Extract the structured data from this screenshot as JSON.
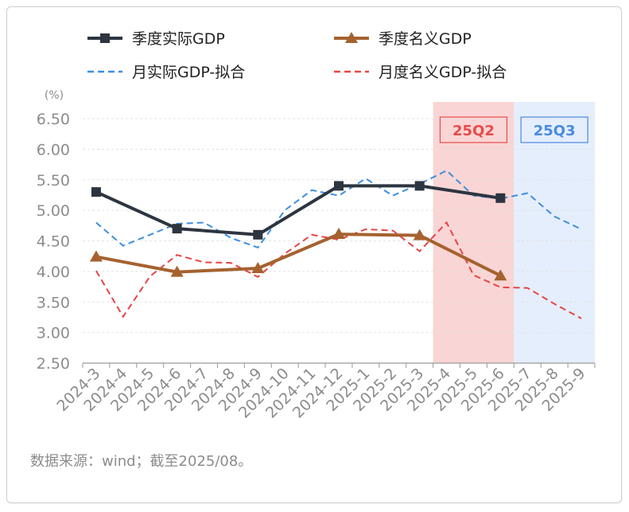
{
  "chart_data": {
    "type": "line",
    "unit_label": "(%)",
    "ylim": [
      2.5,
      6.5
    ],
    "y_ticks": [
      "2.50",
      "3.00",
      "3.50",
      "4.00",
      "4.50",
      "5.00",
      "5.50",
      "6.00",
      "6.50"
    ],
    "categories": [
      "2024-3",
      "2024-4",
      "2024-5",
      "2024-6",
      "2024-7",
      "2024-8",
      "2024-9",
      "2024-10",
      "2024-11",
      "2024-12",
      "2025-1",
      "2025-2",
      "2025-3",
      "2025-4",
      "2025-5",
      "2025-6",
      "2025-7",
      "2025-8",
      "2025-9"
    ],
    "grid": true,
    "legend_position": "top",
    "shaded_regions": [
      {
        "label": "25Q2",
        "from": "2025-4",
        "to": "2025-6",
        "fill": "#f9d5d5",
        "color": "#e84b4b"
      },
      {
        "label": "25Q3",
        "from": "2025-7",
        "to": "2025-9",
        "fill": "#e5eefc",
        "color": "#4a8be0"
      }
    ],
    "series": [
      {
        "name": "季度实际GDP",
        "style": "solid-square",
        "color": "#2d3540",
        "points": [
          [
            "2024-3",
            5.3
          ],
          [
            "2024-6",
            4.7
          ],
          [
            "2024-9",
            4.6
          ],
          [
            "2024-12",
            5.4
          ],
          [
            "2025-3",
            5.4
          ],
          [
            "2025-6",
            5.2
          ]
        ]
      },
      {
        "name": "季度名义GDP",
        "style": "solid-triangle",
        "color": "#a5622f",
        "points": [
          [
            "2024-3",
            4.24
          ],
          [
            "2024-6",
            3.99
          ],
          [
            "2024-9",
            4.05
          ],
          [
            "2024-12",
            4.61
          ],
          [
            "2025-3",
            4.59
          ],
          [
            "2025-6",
            3.93
          ]
        ]
      },
      {
        "name": "月实际GDP-拟合",
        "style": "dashed",
        "color": "#3d8fdf",
        "values": [
          4.8,
          4.42,
          4.6,
          4.78,
          4.8,
          4.55,
          4.39,
          5.0,
          5.33,
          5.24,
          5.52,
          5.24,
          5.43,
          5.65,
          5.24,
          5.19,
          5.28,
          4.9,
          4.69
        ]
      },
      {
        "name": "月度名义GDP-拟合",
        "style": "dashed",
        "color": "#e84545",
        "values": [
          4.01,
          3.26,
          3.92,
          4.27,
          4.15,
          4.14,
          3.91,
          4.29,
          4.6,
          4.52,
          4.69,
          4.67,
          4.33,
          4.8,
          3.94,
          3.74,
          3.73,
          3.47,
          3.23
        ]
      }
    ]
  },
  "source_note": "数据来源：wind；截至2025/08。"
}
